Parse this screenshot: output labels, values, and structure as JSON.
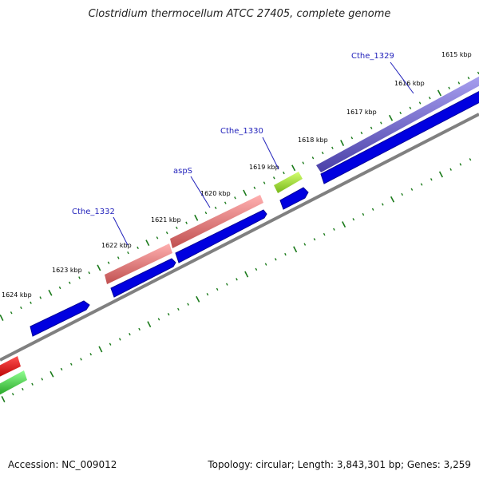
{
  "title": "Clostridium thermocellum ATCC 27405, complete genome",
  "footer": {
    "accession": "Accession: NC_009012",
    "summary": "Topology: circular; Length: 3,843,301 bp; Genes: 3,259"
  },
  "ticks": [
    {
      "label": "1615 kbp"
    },
    {
      "label": "1616 kbp"
    },
    {
      "label": "1617 kbp"
    },
    {
      "label": "1618 kbp"
    },
    {
      "label": "1619 kbp"
    },
    {
      "label": "1620 kbp"
    },
    {
      "label": "1621 kbp"
    },
    {
      "label": "1622 kbp"
    },
    {
      "label": "1623 kbp"
    },
    {
      "label": "1624 kbp"
    }
  ],
  "gene_labels": [
    "Cthe_1329",
    "Cthe_1330",
    "aspS",
    "Cthe_1332"
  ],
  "colors": {
    "backbone": "#808080",
    "tick": "#1a7a1a",
    "cds": "#0000e0",
    "gene_purple": "#7a70d8",
    "gene_lime": "#a6e23a",
    "gene_pink": "#ee8080",
    "gene_red": "#ee1111",
    "gene_green": "#3fcf3f"
  }
}
